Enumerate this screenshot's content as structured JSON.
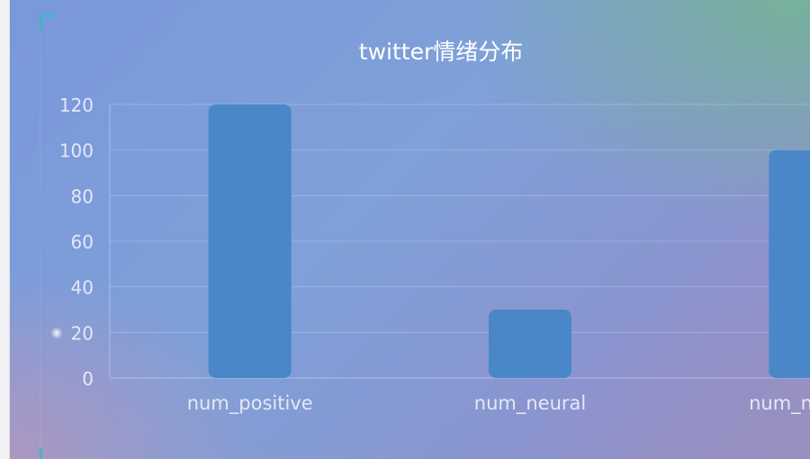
{
  "chart_data": {
    "type": "bar",
    "title": "twitter情绪分布",
    "categories": [
      "num_positive",
      "num_neural",
      "num_nagtive"
    ],
    "values": [
      120,
      30,
      100
    ],
    "ylim": [
      0,
      120
    ],
    "yticks": [
      0,
      20,
      40,
      60,
      80,
      100,
      120
    ],
    "grid": true,
    "colors": {
      "bar": "#4a87c9",
      "title": "#ffffff",
      "tick": "#e4e8f7",
      "grid": "rgba(255,255,255,0.22)",
      "axis": "rgba(255,255,255,0.35)"
    }
  }
}
